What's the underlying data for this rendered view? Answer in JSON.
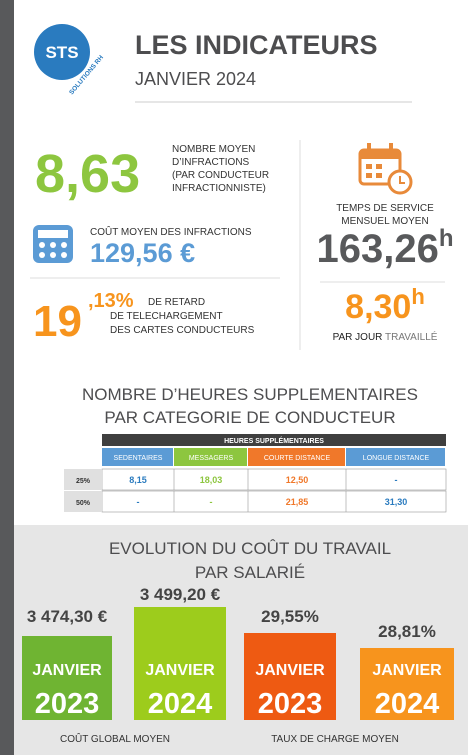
{
  "header": {
    "logo": "STS",
    "logo_sub": "SOLUTIONS RH",
    "title": "LES INDICATEURS",
    "subtitle": "JANVIER 2024"
  },
  "infractions": {
    "value": "8,63",
    "lines": [
      "NOMBRE MOYEN",
      "D’INFRACTIONS",
      "(PAR CONDUCTEUR",
      "INFRACTIONNISTE)"
    ]
  },
  "cost": {
    "label": "COÛT MOYEN DES INFRACTIONS",
    "value": "129,56 €"
  },
  "delay": {
    "value_int": "19",
    "value_dec": ",13%",
    "lines": [
      "DE RETARD",
      "DE TELECHARGEMENT",
      "DES CARTES CONDUCTEURS"
    ]
  },
  "service": {
    "lines": [
      "TEMPS DE SERVICE",
      "MENSUEL MOYEN"
    ],
    "value": "163,26",
    "unit": "h"
  },
  "daily": {
    "value": "8,30",
    "unit": "h",
    "label_a": "PAR JOUR",
    "label_b": "TRAVAILLÉ"
  },
  "overtime": {
    "title": [
      "NOMBRE D’HEURES SUPPLEMENTAIRES",
      "PAR CATEGORIE DE CONDUCTEUR"
    ],
    "table": {
      "group": "HEURES SUPPLÉMENTAIRES",
      "columns": [
        "SEDENTAIRES",
        "MESSAGERS",
        "COURTE DISTANCE",
        "LONGUE DISTANCE"
      ],
      "rows": [
        [
          "25%",
          "8,15",
          "18,03",
          "12,50",
          "-"
        ],
        [
          "50%",
          "-",
          "-",
          "21,85",
          "31,30"
        ]
      ]
    }
  },
  "evolution": {
    "title": [
      "EVOLUTION DU COÛT DU TRAVAIL",
      "PAR SALARIÉ"
    ],
    "blocks": [
      {
        "value": "3 474,30 €",
        "month": "JANVIER",
        "year": "2023"
      },
      {
        "value": "3 499,20 €",
        "month": "JANVIER",
        "year": "2024"
      },
      {
        "value": "29,55%",
        "month": "JANVIER",
        "year": "2023"
      },
      {
        "value": "28,81%",
        "month": "JANVIER",
        "year": "2024"
      }
    ],
    "captions": [
      "COÛT GLOBAL MOYEN",
      "TAUX DE CHARGE MOYEN"
    ]
  }
}
